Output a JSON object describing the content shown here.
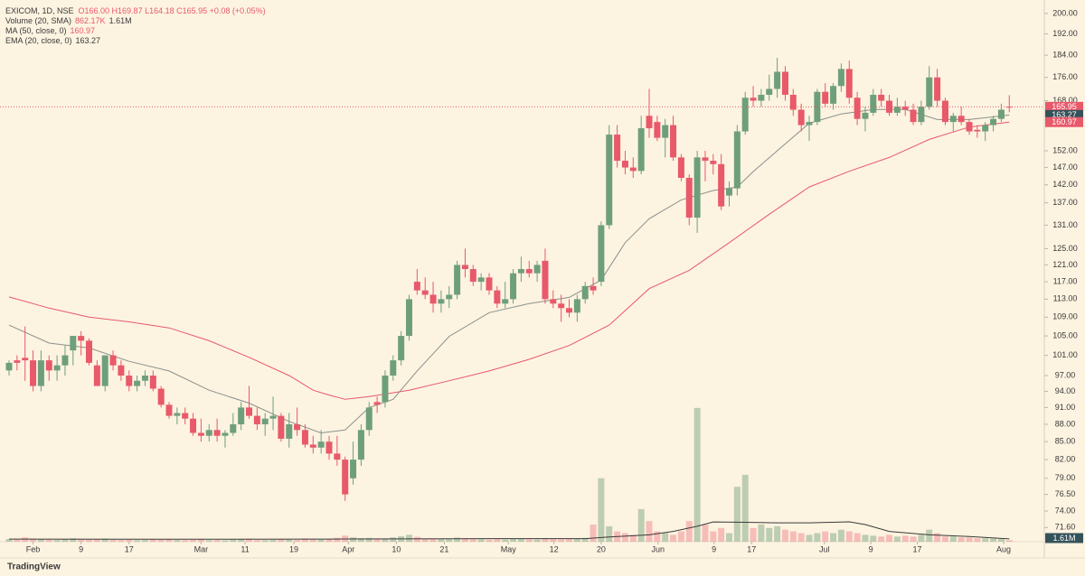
{
  "chart_data": {
    "type": "candlestick",
    "symbol": "EXICOM, 1D, NSE",
    "quote": "O166.00 H169.87 L164.18 C165.95 +0.08 (+0.05%)",
    "branding": "TradingView",
    "yscale": "log",
    "ylim": [
      69.6,
      203.6
    ],
    "yticks": [
      {
        "value": 200,
        "label": "200.00"
      },
      {
        "value": 192,
        "label": "192.00"
      },
      {
        "value": 184,
        "label": "184.00"
      },
      {
        "value": 176,
        "label": "176.00"
      },
      {
        "value": 168,
        "label": "168.00"
      },
      {
        "value": 152,
        "label": "152.00"
      },
      {
        "value": 147,
        "label": "147.00"
      },
      {
        "value": 142,
        "label": "142.00"
      },
      {
        "value": 137,
        "label": "137.00"
      },
      {
        "value": 131,
        "label": "131.00"
      },
      {
        "value": 125,
        "label": "125.00"
      },
      {
        "value": 121,
        "label": "121.00"
      },
      {
        "value": 117,
        "label": "117.00"
      },
      {
        "value": 113,
        "label": "113.00"
      },
      {
        "value": 109,
        "label": "109.00"
      },
      {
        "value": 105,
        "label": "105.00"
      },
      {
        "value": 101,
        "label": "101.00"
      },
      {
        "value": 97,
        "label": "97.00"
      },
      {
        "value": 94,
        "label": "94.00"
      },
      {
        "value": 91,
        "label": "91.00"
      },
      {
        "value": 88,
        "label": "88.00"
      },
      {
        "value": 85,
        "label": "85.00"
      },
      {
        "value": 82,
        "label": "82.00"
      },
      {
        "value": 79,
        "label": "79.00"
      },
      {
        "value": 76.5,
        "label": "76.50"
      },
      {
        "value": 74,
        "label": "74.00"
      },
      {
        "value": 71.6,
        "label": "71.60"
      }
    ],
    "xticks": [
      {
        "value": 3.0,
        "label": "Feb"
      },
      {
        "value": 9.0,
        "label": "9"
      },
      {
        "value": 15.0,
        "label": "17"
      },
      {
        "value": 24.0,
        "label": "Mar"
      },
      {
        "value": 29.5,
        "label": "11"
      },
      {
        "value": 35.6,
        "label": "19"
      },
      {
        "value": 42.4,
        "label": "Apr"
      },
      {
        "value": 48.4,
        "label": "10"
      },
      {
        "value": 54.4,
        "label": "21"
      },
      {
        "value": 62.4,
        "label": "May"
      },
      {
        "value": 68.1,
        "label": "12"
      },
      {
        "value": 74.0,
        "label": "20"
      },
      {
        "value": 81.1,
        "label": "Jun"
      },
      {
        "value": 88.1,
        "label": "9"
      },
      {
        "value": 92.8,
        "label": "17"
      },
      {
        "value": 101.9,
        "label": "Jul"
      },
      {
        "value": 107.7,
        "label": "9"
      },
      {
        "value": 113.5,
        "label": "17"
      },
      {
        "value": 124.3,
        "label": "Aug"
      }
    ],
    "up_color": "#6e9f7b",
    "down_color": "#e8596a",
    "ohlc": [
      [
        98,
        100,
        97,
        99.5
      ],
      [
        100,
        101,
        98,
        99.5
      ],
      [
        100.5,
        107,
        96,
        100
      ],
      [
        100,
        102,
        94,
        95
      ],
      [
        95,
        102,
        94,
        100
      ],
      [
        100,
        101,
        96,
        98
      ],
      [
        98,
        101,
        96,
        99
      ],
      [
        99,
        103,
        97,
        101
      ],
      [
        102,
        105,
        99,
        105
      ],
      [
        105,
        106,
        101,
        104
      ],
      [
        104,
        104.5,
        99,
        99.5
      ],
      [
        99,
        100,
        95,
        95
      ],
      [
        95,
        101,
        94,
        101
      ],
      [
        101,
        102,
        98,
        99
      ],
      [
        99,
        100,
        96,
        97
      ],
      [
        97,
        98,
        94,
        95
      ],
      [
        95,
        97,
        94,
        96
      ],
      [
        96,
        98,
        95,
        97
      ],
      [
        97,
        98,
        94,
        94.5
      ],
      [
        94.5,
        95,
        91,
        91.5
      ],
      [
        91.5,
        92,
        89,
        89.5
      ],
      [
        89.5,
        91,
        88,
        90
      ],
      [
        90,
        91,
        88,
        89
      ],
      [
        89,
        90,
        86,
        86.5
      ],
      [
        86.5,
        89,
        85,
        86
      ],
      [
        86,
        88,
        85,
        87
      ],
      [
        87,
        89,
        85,
        86
      ],
      [
        86,
        87,
        84,
        86.5
      ],
      [
        86.5,
        90,
        86,
        88
      ],
      [
        88,
        92,
        87,
        91
      ],
      [
        91,
        95,
        89,
        89.5
      ],
      [
        89.5,
        91,
        87,
        88
      ],
      [
        88,
        90,
        86,
        89
      ],
      [
        89,
        93,
        87,
        89.5
      ],
      [
        89.5,
        90,
        85,
        85.5
      ],
      [
        85.5,
        90,
        84,
        88
      ],
      [
        88,
        91,
        86,
        87
      ],
      [
        87,
        88,
        84,
        84.5
      ],
      [
        84.5,
        86,
        83,
        84
      ],
      [
        84,
        87,
        83,
        85
      ],
      [
        85,
        86,
        82,
        83
      ],
      [
        83,
        86,
        81,
        82
      ],
      [
        82,
        82.5,
        75.5,
        76.5
      ],
      [
        79,
        85,
        78,
        82
      ],
      [
        82,
        88,
        81,
        87
      ],
      [
        87,
        92,
        86,
        91
      ],
      [
        92,
        93,
        90,
        91.5
      ],
      [
        92,
        98,
        91,
        97
      ],
      [
        97,
        101,
        96,
        100
      ],
      [
        100,
        106,
        99,
        105
      ],
      [
        105,
        114,
        104,
        113
      ],
      [
        117,
        120,
        114,
        115
      ],
      [
        115,
        118,
        113,
        114
      ],
      [
        114,
        117,
        110,
        112
      ],
      [
        112,
        115,
        110,
        113
      ],
      [
        113,
        116,
        111,
        114
      ],
      [
        114,
        122,
        113,
        121
      ],
      [
        121,
        125,
        118,
        120
      ],
      [
        120,
        121,
        116,
        117
      ],
      [
        117,
        119,
        115,
        118
      ],
      [
        118,
        119,
        114,
        115
      ],
      [
        115,
        116,
        111,
        112
      ],
      [
        112,
        117,
        111,
        113
      ],
      [
        113,
        120,
        112,
        119
      ],
      [
        119,
        123,
        117,
        120
      ],
      [
        120,
        122,
        118,
        119
      ],
      [
        119,
        122,
        117,
        121
      ],
      [
        122,
        125,
        112,
        113
      ],
      [
        113,
        115,
        111,
        112
      ],
      [
        112,
        114,
        108,
        111
      ],
      [
        111,
        113,
        109,
        110
      ],
      [
        110,
        114,
        108,
        113
      ],
      [
        113,
        117,
        112,
        116
      ],
      [
        116,
        118,
        114,
        115
      ],
      [
        117,
        132,
        116,
        131
      ],
      [
        131,
        160,
        130,
        157
      ],
      [
        157,
        160,
        147,
        149
      ],
      [
        149,
        152,
        145,
        147
      ],
      [
        147,
        150,
        144,
        146
      ],
      [
        146,
        163,
        145,
        159
      ],
      [
        163,
        172,
        156,
        159
      ],
      [
        161,
        163,
        155,
        156
      ],
      [
        156,
        162,
        150,
        160
      ],
      [
        160,
        163,
        149,
        150
      ],
      [
        150,
        151,
        143,
        144
      ],
      [
        144,
        145,
        131,
        133
      ],
      [
        133,
        152,
        129,
        150
      ],
      [
        150,
        152,
        143,
        149
      ],
      [
        149,
        151,
        145,
        148
      ],
      [
        148,
        151,
        135,
        136
      ],
      [
        139,
        143,
        136,
        141
      ],
      [
        141,
        160,
        139,
        158
      ],
      [
        158,
        171,
        157,
        169
      ],
      [
        169,
        173,
        166,
        168
      ],
      [
        168,
        172,
        166,
        170
      ],
      [
        170,
        177,
        168,
        172
      ],
      [
        172,
        183,
        169,
        178
      ],
      [
        178,
        180,
        168,
        170
      ],
      [
        170,
        172,
        163,
        165
      ],
      [
        165,
        167,
        158,
        160
      ],
      [
        160,
        163,
        155,
        161
      ],
      [
        161,
        172,
        160,
        171
      ],
      [
        171,
        174,
        166,
        167
      ],
      [
        167,
        174,
        165,
        173
      ],
      [
        173,
        181,
        171,
        179
      ],
      [
        179,
        182,
        167,
        169
      ],
      [
        169,
        171,
        160,
        162
      ],
      [
        162,
        166,
        158,
        164
      ],
      [
        164,
        172,
        163,
        170
      ],
      [
        170,
        172,
        166,
        168
      ],
      [
        168,
        170,
        163,
        164
      ],
      [
        164,
        169,
        163,
        166
      ],
      [
        166,
        168,
        163,
        165
      ],
      [
        165,
        167,
        160,
        161
      ],
      [
        161,
        168,
        160,
        166
      ],
      [
        166,
        180,
        165,
        176
      ],
      [
        176,
        179,
        166,
        168
      ],
      [
        168,
        169,
        160,
        161
      ],
      [
        161,
        164,
        158,
        163
      ],
      [
        163,
        166,
        160,
        161
      ],
      [
        161,
        162,
        157,
        158
      ],
      [
        158.5,
        160,
        156,
        158
      ],
      [
        158,
        161,
        155,
        160
      ],
      [
        160,
        163,
        158,
        162
      ],
      [
        162,
        167,
        161,
        165
      ],
      [
        166,
        169.87,
        164.18,
        165.95
      ]
    ],
    "volume_name": "Volume (20, SMA)",
    "volume_current": {
      "value": 0.86217,
      "label": "862.17K"
    },
    "vlim": [
      0,
      100
    ],
    "volume": [
      1.5,
      1.2,
      2.5,
      1.8,
      1.4,
      1.2,
      1.0,
      1.3,
      2.0,
      1.6,
      1.2,
      1.4,
      1.8,
      1.1,
      1.0,
      1.2,
      0.9,
      1.0,
      1.3,
      1.2,
      1.4,
      1.0,
      0.9,
      1.1,
      1.5,
      0.9,
      1.0,
      0.8,
      1.2,
      1.6,
      1.8,
      1.0,
      0.9,
      1.1,
      1.3,
      1.2,
      1.0,
      1.9,
      1.4,
      1.2,
      1.5,
      2.2,
      3.5,
      2.5,
      2.0,
      2.2,
      1.6,
      1.8,
      2.5,
      3.2,
      4.0,
      2.8,
      1.8,
      1.5,
      1.6,
      1.4,
      2.4,
      2.0,
      1.5,
      1.4,
      1.2,
      1.5,
      1.3,
      1.6,
      1.8,
      1.4,
      1.3,
      2.0,
      1.6,
      1.4,
      1.5,
      1.8,
      2.2,
      10,
      37,
      9,
      6,
      5,
      4,
      19,
      12,
      6,
      5,
      4,
      6,
      12,
      78,
      10,
      6,
      8,
      5,
      32,
      39,
      8,
      10,
      8,
      9,
      7,
      6,
      5,
      4,
      5,
      6,
      5,
      7,
      6,
      5,
      4,
      3.5,
      3,
      4,
      3,
      3.5,
      3,
      4,
      7,
      5,
      3,
      3,
      2.5,
      2.5,
      2,
      2,
      1.8,
      1.6,
      0.86217
    ],
    "volume_sma": {
      "color": "#3a3a3a",
      "last": {
        "value": 1.61,
        "label": "1.61M"
      },
      "x": [
        0,
        20,
        40,
        60,
        72,
        75,
        78,
        80,
        83,
        86,
        88,
        92,
        96,
        100,
        105,
        107,
        110,
        115,
        120,
        125
      ],
      "values": [
        1.5,
        1.4,
        1.5,
        1.8,
        1.8,
        2.8,
        3.5,
        4,
        6,
        9,
        11.5,
        11.3,
        11,
        11,
        11.6,
        10,
        6,
        4,
        3,
        1.61
      ]
    },
    "ma50": {
      "name": "MA (50, close, 0)",
      "color": "#e8596a",
      "label_color": "#e8596a",
      "last": 160.97,
      "x": [
        0,
        5,
        10,
        15,
        20,
        25,
        30,
        35,
        38,
        40,
        42,
        45,
        50,
        55,
        60,
        65,
        70,
        75,
        80,
        85,
        90,
        95,
        100,
        105,
        110,
        115,
        120,
        125
      ],
      "values": [
        113.5,
        111,
        109,
        108,
        106.7,
        104,
        100.6,
        97,
        94.2,
        93.3,
        92.5,
        93,
        94.2,
        96,
        97.9,
        100.2,
        103,
        107.3,
        115.4,
        119.7,
        126.5,
        133.9,
        141.4,
        145.9,
        150,
        155.5,
        159.4,
        160.97
      ]
    },
    "ema20": {
      "name": "EMA (20, close, 0)",
      "color": "#8a918c",
      "label_color": "#34525a",
      "last": 163.27,
      "x": [
        0,
        5,
        10,
        15,
        20,
        25,
        30,
        35,
        39,
        42,
        45,
        48,
        51,
        55,
        60,
        65,
        70,
        74,
        77,
        80,
        84,
        88,
        91,
        93,
        96,
        100,
        104,
        108,
        112,
        116,
        120,
        125
      ],
      "values": [
        107.3,
        103.5,
        102.5,
        99.8,
        97.9,
        94.2,
        91.8,
        88.5,
        86.5,
        87,
        91,
        92.5,
        97.9,
        104.9,
        110,
        112,
        113.4,
        117.4,
        126.5,
        132.7,
        137.8,
        140.4,
        141.4,
        145.8,
        152,
        160.6,
        163.6,
        165.1,
        165.1,
        161.8,
        161.8,
        163.27
      ]
    }
  }
}
